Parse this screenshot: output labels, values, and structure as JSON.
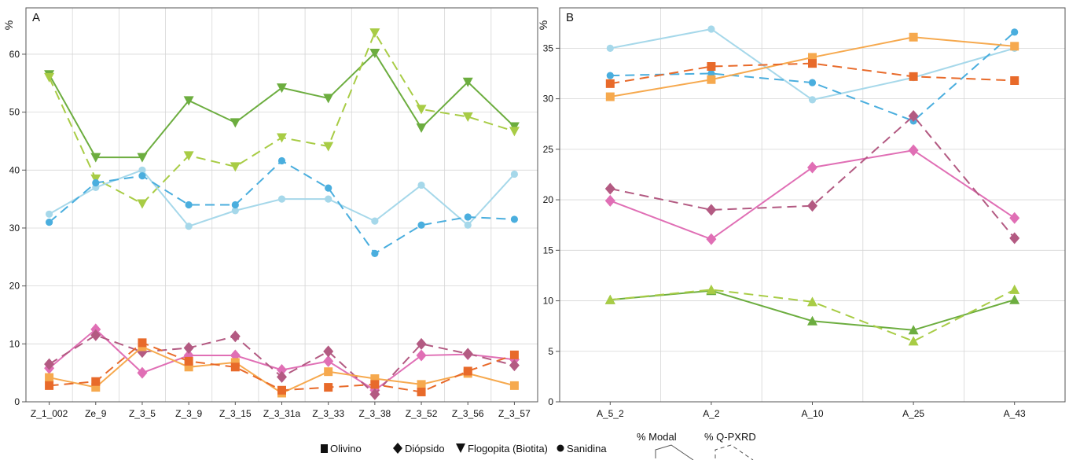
{
  "colors": {
    "flogopita_modal": "#6cad3f",
    "flogopita_qpxrd": "#a8cc45",
    "sanidina_modal": "#a6d8ea",
    "sanidina_qpxrd": "#4aaede",
    "diopsido_modal": "#e06fb5",
    "diopsido_qpxrd": "#b35a82",
    "olivino_modal": "#f6a94e",
    "olivino_qpxrd": "#e86a2a",
    "axis": "#555555",
    "grid": "#d6d6d6"
  },
  "legend": {
    "olivino": "Olivino",
    "diopsido": "Diópsido",
    "flogopita": "Flogopita (Biotita)",
    "sanidina": "Sanidina",
    "modal": "% Modal",
    "qpxrd": "% Q-PXRD"
  },
  "chart_data": [
    {
      "type": "line",
      "panel_label": "A",
      "ylabel": "%",
      "ylim": [
        0,
        68
      ],
      "yticks": [
        0,
        10,
        20,
        30,
        40,
        50,
        60
      ],
      "grid": true,
      "categories": [
        "Z_1_002",
        "Ze_9",
        "Z_3_5",
        "Z_3_9",
        "Z_3_15",
        "Z_3_31a",
        "Z_3_33",
        "Z_3_38",
        "Z_3_52",
        "Z_3_56",
        "Z_3_57"
      ],
      "series": [
        {
          "mineral": "flogopita",
          "method": "modal",
          "marker": "triangle-down",
          "values": [
            56.5,
            42.2,
            42.2,
            52,
            48.2,
            54.2,
            52.4,
            60.2,
            47.3,
            55.2,
            47.5
          ]
        },
        {
          "mineral": "flogopita",
          "method": "qpxrd",
          "marker": "triangle-down",
          "values": [
            56,
            38.5,
            34.2,
            42.5,
            40.6,
            45.6,
            44.1,
            63.7,
            50.5,
            49.2,
            46.7
          ]
        },
        {
          "mineral": "sanidina",
          "method": "modal",
          "marker": "circle",
          "values": [
            32.4,
            37,
            40,
            30.3,
            33,
            35,
            35,
            31.2,
            37.4,
            30.5,
            39.3
          ]
        },
        {
          "mineral": "sanidina",
          "method": "qpxrd",
          "marker": "circle",
          "values": [
            31,
            37.8,
            39,
            34,
            34,
            41.6,
            36.9,
            25.6,
            30.5,
            31.9,
            31.5
          ]
        },
        {
          "mineral": "diopsido",
          "method": "modal",
          "marker": "diamond",
          "values": [
            5.8,
            12.5,
            5,
            8,
            8,
            5.5,
            7,
            2,
            8,
            8.2,
            7.3
          ]
        },
        {
          "mineral": "diopsido",
          "method": "qpxrd",
          "marker": "diamond",
          "values": [
            6.5,
            11.5,
            8.6,
            9.3,
            11.3,
            4.3,
            8.7,
            1.3,
            10,
            8.3,
            6.3
          ]
        },
        {
          "mineral": "olivino",
          "method": "modal",
          "marker": "square",
          "values": [
            4.2,
            2.5,
            9.5,
            6,
            6.8,
            1.5,
            5.2,
            4,
            3,
            4.9,
            2.8
          ]
        },
        {
          "mineral": "olivino",
          "method": "qpxrd",
          "marker": "square",
          "values": [
            2.8,
            3.5,
            10.2,
            7,
            6,
            2,
            2.5,
            3,
            1.7,
            5.3,
            8.1
          ]
        }
      ]
    },
    {
      "type": "line",
      "panel_label": "B",
      "ylabel": "%",
      "ylim": [
        0,
        39
      ],
      "yticks": [
        0,
        5,
        10,
        15,
        20,
        25,
        30,
        35
      ],
      "grid": true,
      "categories": [
        "A_5_2",
        "A_2",
        "A_10",
        "A_25",
        "A_43"
      ],
      "series": [
        {
          "mineral": "sanidina",
          "method": "modal",
          "marker": "circle",
          "values": [
            35,
            36.9,
            29.9,
            32.1,
            35
          ]
        },
        {
          "mineral": "sanidina",
          "method": "qpxrd",
          "marker": "circle",
          "values": [
            32.3,
            32.5,
            31.6,
            27.8,
            36.6
          ]
        },
        {
          "mineral": "olivino",
          "method": "modal",
          "marker": "square",
          "values": [
            30.2,
            31.9,
            34.1,
            36.1,
            35.2
          ]
        },
        {
          "mineral": "olivino",
          "method": "qpxrd",
          "marker": "square",
          "values": [
            31.5,
            33.2,
            33.5,
            32.2,
            31.8
          ]
        },
        {
          "mineral": "diopsido",
          "method": "modal",
          "marker": "diamond",
          "values": [
            19.9,
            16.1,
            23.2,
            24.9,
            18.2
          ]
        },
        {
          "mineral": "diopsido",
          "method": "qpxrd",
          "marker": "diamond",
          "values": [
            21.1,
            19,
            19.4,
            28.3,
            16.2
          ]
        },
        {
          "mineral": "flogopita",
          "method": "modal",
          "marker": "triangle-up",
          "values": [
            10.1,
            11,
            8,
            7.1,
            10.1
          ]
        },
        {
          "mineral": "flogopita",
          "method": "qpxrd",
          "marker": "triangle-up",
          "values": [
            10.1,
            11.1,
            9.9,
            6,
            11.1
          ]
        }
      ]
    }
  ]
}
